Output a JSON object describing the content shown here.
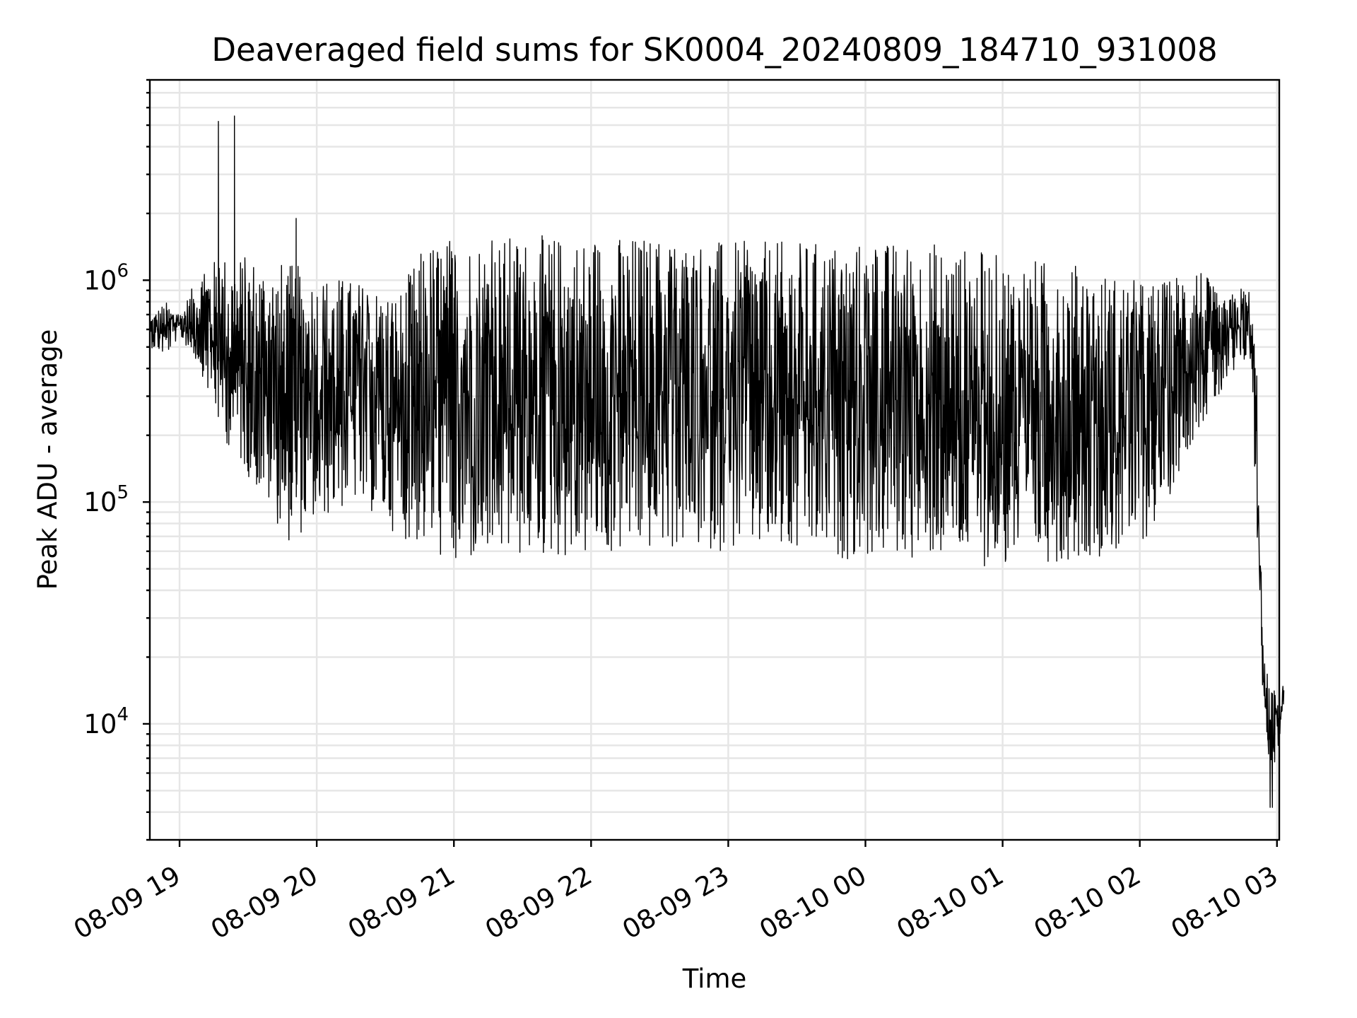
{
  "chart_data": {
    "type": "line",
    "title": "Deaveraged field sums for SK0004_20240809_184710_931008",
    "xlabel": "Time",
    "ylabel": "Peak ADU - average",
    "yscale": "log",
    "ylim": [
      3000,
      8000000
    ],
    "xlim": [
      "2024-08-09 18:47",
      "2024-08-10 03:01"
    ],
    "grid": true,
    "x_ticks": [
      "08-09 19",
      "08-09 20",
      "08-09 21",
      "08-09 22",
      "08-09 23",
      "08-10 00",
      "08-10 01",
      "08-10 02",
      "08-10 03"
    ],
    "x_tick_hours": [
      19,
      20,
      21,
      22,
      23,
      24,
      25,
      26,
      27
    ],
    "y_ticks": [
      {
        "base": "10",
        "exp": "4",
        "value": 10000
      },
      {
        "base": "10",
        "exp": "5",
        "value": 100000
      },
      {
        "base": "10",
        "exp": "6",
        "value": 1000000
      }
    ],
    "series": [
      {
        "color": "#000000",
        "envelope": {
          "hour": [
            18.79,
            18.9,
            19.0,
            19.15,
            19.3,
            19.5,
            19.8,
            20.0,
            20.3,
            20.6,
            20.8,
            21.0,
            21.5,
            22.0,
            22.5,
            23.0,
            23.5,
            24.0,
            24.5,
            25.0,
            25.5,
            26.0,
            26.2,
            26.4,
            26.6,
            26.75,
            26.8,
            26.85,
            26.9,
            26.95,
            27.0,
            27.05
          ],
          "upper": [
            700000,
            800000,
            700000,
            1100000,
            1300000,
            1300000,
            1200000,
            1100000,
            1000000,
            900000,
            1500000,
            1600000,
            1600000,
            1600000,
            1600000,
            1500000,
            1500000,
            1500000,
            1500000,
            1300000,
            1200000,
            1000000,
            1000000,
            1300000,
            800000,
            950000,
            900000,
            500000,
            20000,
            15000,
            14000,
            16000
          ],
          "lower": [
            500000,
            450000,
            560000,
            400000,
            200000,
            130000,
            65000,
            80000,
            100000,
            70000,
            60000,
            50000,
            55000,
            55000,
            60000,
            60000,
            55000,
            55000,
            55000,
            50000,
            55000,
            60000,
            100000,
            200000,
            300000,
            400000,
            500000,
            80000,
            12000,
            6000,
            7000,
            12000
          ]
        },
        "spikes": [
          {
            "time": "08-09 19:17",
            "value": 5200000
          },
          {
            "time": "08-09 19:24",
            "value": 5500000
          },
          {
            "time": "08-09 19:51",
            "value": 1900000
          }
        ],
        "dips": [
          {
            "time": "08-10 02:57",
            "value": 4200
          },
          {
            "time": "08-10 02:58",
            "value": 4200
          }
        ]
      }
    ]
  }
}
